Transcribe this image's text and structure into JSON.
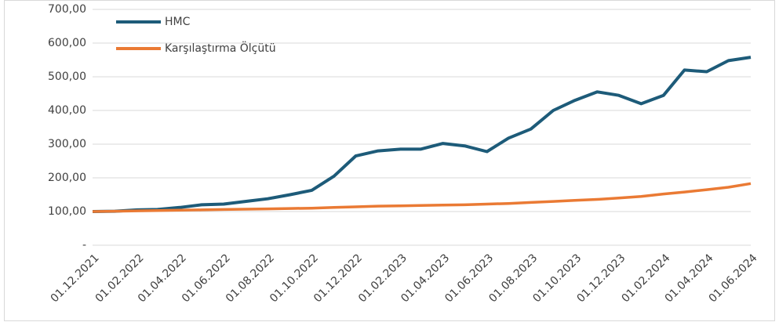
{
  "chart_data": {
    "type": "line",
    "x": [
      "01.12.2021",
      "01.01.2022",
      "01.02.2022",
      "01.03.2022",
      "01.04.2022",
      "01.05.2022",
      "01.06.2022",
      "01.07.2022",
      "01.08.2022",
      "01.09.2022",
      "01.10.2022",
      "01.11.2022",
      "01.12.2022",
      "01.01.2023",
      "01.02.2023",
      "01.03.2023",
      "01.04.2023",
      "01.05.2023",
      "01.06.2023",
      "01.07.2023",
      "01.08.2023",
      "01.09.2023",
      "01.10.2023",
      "01.11.2023",
      "01.12.2023",
      "01.01.2024",
      "01.02.2024",
      "01.03.2024",
      "01.04.2024",
      "01.05.2024",
      "01.06.2024"
    ],
    "series": [
      {
        "name": "HMC",
        "color": "#1d5b79",
        "values": [
          100,
          101,
          105,
          106,
          112,
          120,
          122,
          130,
          138,
          150,
          163,
          205,
          265,
          280,
          285,
          285,
          302,
          295,
          278,
          318,
          345,
          400,
          430,
          455,
          445,
          420,
          445,
          520,
          515,
          548,
          558
        ]
      },
      {
        "name": "Karşılaştırma Ölçütü",
        "color": "#ea7a34",
        "values": [
          100,
          101,
          102,
          103,
          104,
          105,
          106,
          107,
          108,
          109,
          110,
          112,
          114,
          116,
          117,
          118,
          119,
          120,
          122,
          124,
          127,
          130,
          133,
          136,
          140,
          145,
          152,
          158,
          165,
          172,
          183
        ]
      }
    ],
    "xticks": [
      "01.12.2021",
      "01.02.2022",
      "01.04.2022",
      "01.06.2022",
      "01.08.2022",
      "01.10.2022",
      "01.12.2022",
      "01.02.2023",
      "01.04.2023",
      "01.06.2023",
      "01.08.2023",
      "01.10.2023",
      "01.12.2023",
      "01.02.2024",
      "01.04.2024",
      "01.06.2024"
    ],
    "ylim": [
      0,
      700
    ],
    "yticks": [
      {
        "value": 0,
        "label": "-"
      },
      {
        "value": 100,
        "label": "100,00"
      },
      {
        "value": 200,
        "label": "200,00"
      },
      {
        "value": 300,
        "label": "300,00"
      },
      {
        "value": 400,
        "label": "400,00"
      },
      {
        "value": 500,
        "label": "500,00"
      },
      {
        "value": 600,
        "label": "600,00"
      },
      {
        "value": 700,
        "label": "700,00"
      }
    ],
    "grid": true,
    "legend": "top-left"
  }
}
